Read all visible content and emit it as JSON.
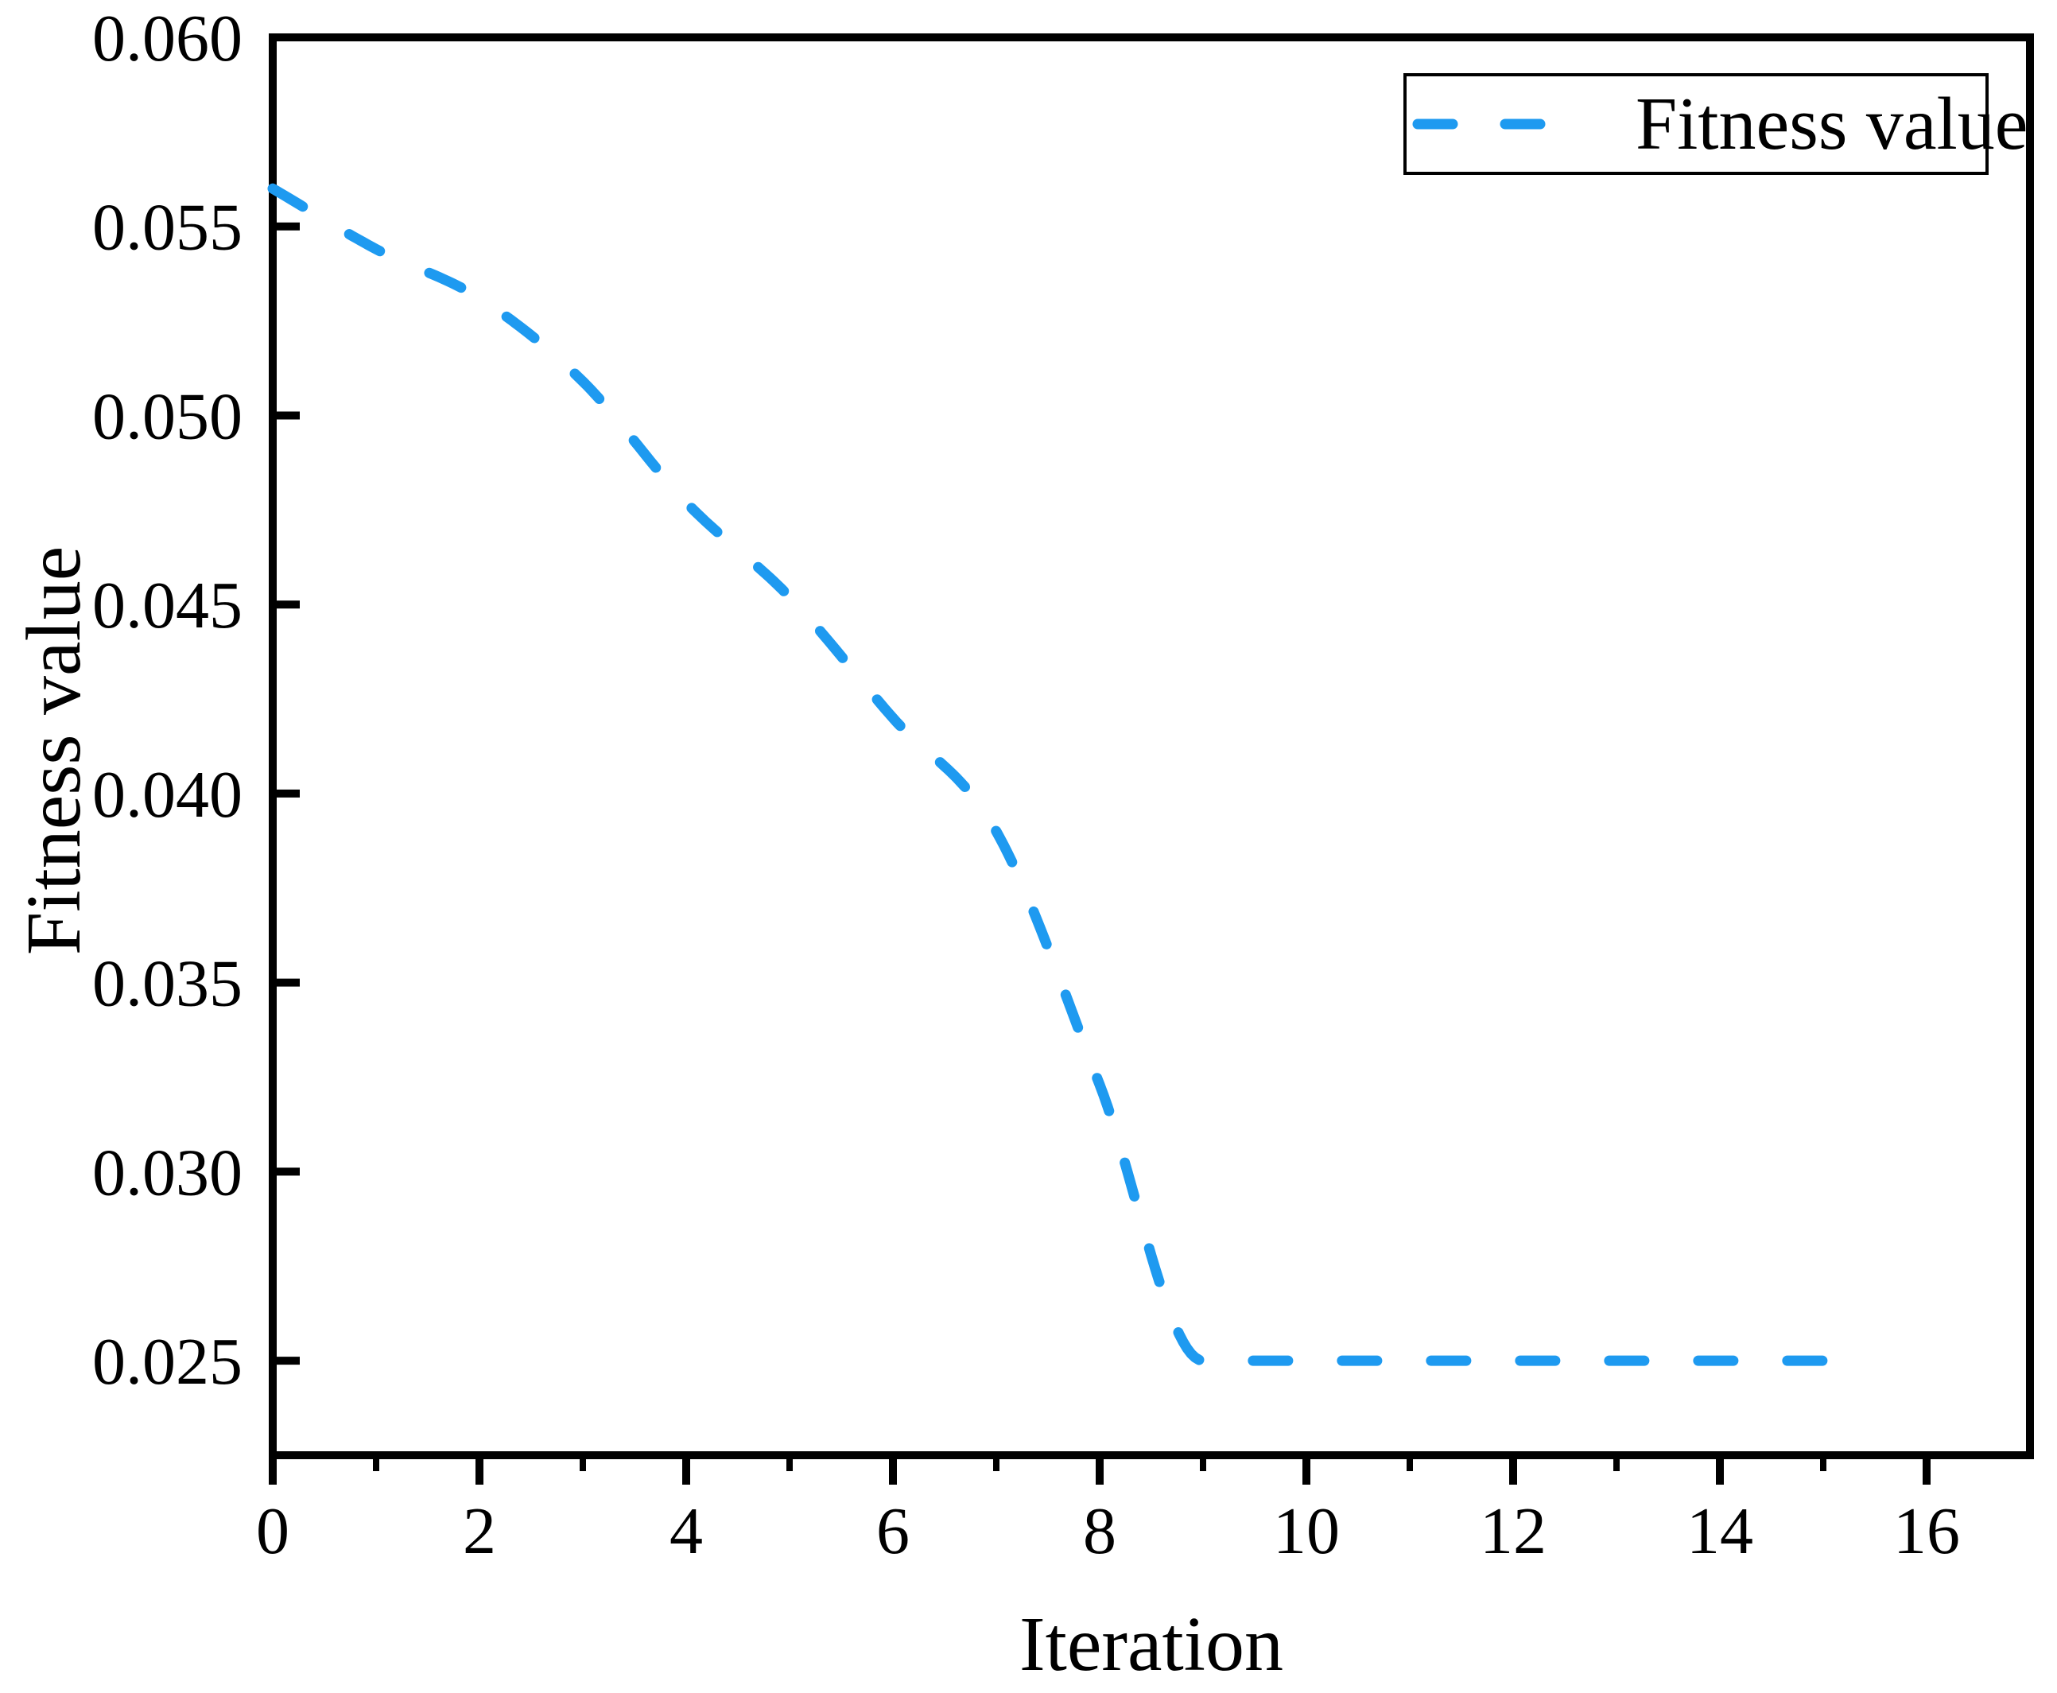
{
  "legend": {
    "label": "Fitness value"
  },
  "axes": {
    "x_title": "Iteration",
    "y_title": "Fitness value"
  },
  "colors": {
    "line": "#1E9AF0",
    "axis": "#000000",
    "background": "#FFFFFF"
  },
  "chart_data": {
    "type": "line",
    "title": "",
    "xlabel": "Iteration",
    "ylabel": "Fitness value",
    "xlim": [
      0,
      17
    ],
    "ylim": [
      0.0225,
      0.06
    ],
    "grid": false,
    "legend_position": "upper right",
    "x_major_ticks": [
      0,
      2,
      4,
      6,
      8,
      10,
      12,
      14,
      16
    ],
    "x_minor_ticks": [
      1,
      3,
      5,
      7,
      9,
      11,
      13,
      15,
      17
    ],
    "y_major_ticks": [
      0.06,
      0.055,
      0.05,
      0.045,
      0.04,
      0.035,
      0.03,
      0.025
    ],
    "y_tick_labels": [
      "0.060",
      "0.055",
      "0.050",
      "0.045",
      "0.040",
      "0.035",
      "0.030",
      "0.025"
    ],
    "series": [
      {
        "name": "Fitness value",
        "style": "dashed",
        "color": "#1E9AF0",
        "x": [
          0,
          1,
          2,
          3,
          4,
          5,
          6,
          7,
          8,
          9,
          10,
          11,
          12,
          13,
          14,
          15
        ],
        "y": [
          0.056,
          0.0544,
          0.0531,
          0.0509,
          0.0477,
          0.0452,
          0.042,
          0.039,
          0.0323,
          0.025,
          0.025,
          0.025,
          0.025,
          0.025,
          0.025,
          0.025
        ]
      }
    ]
  }
}
